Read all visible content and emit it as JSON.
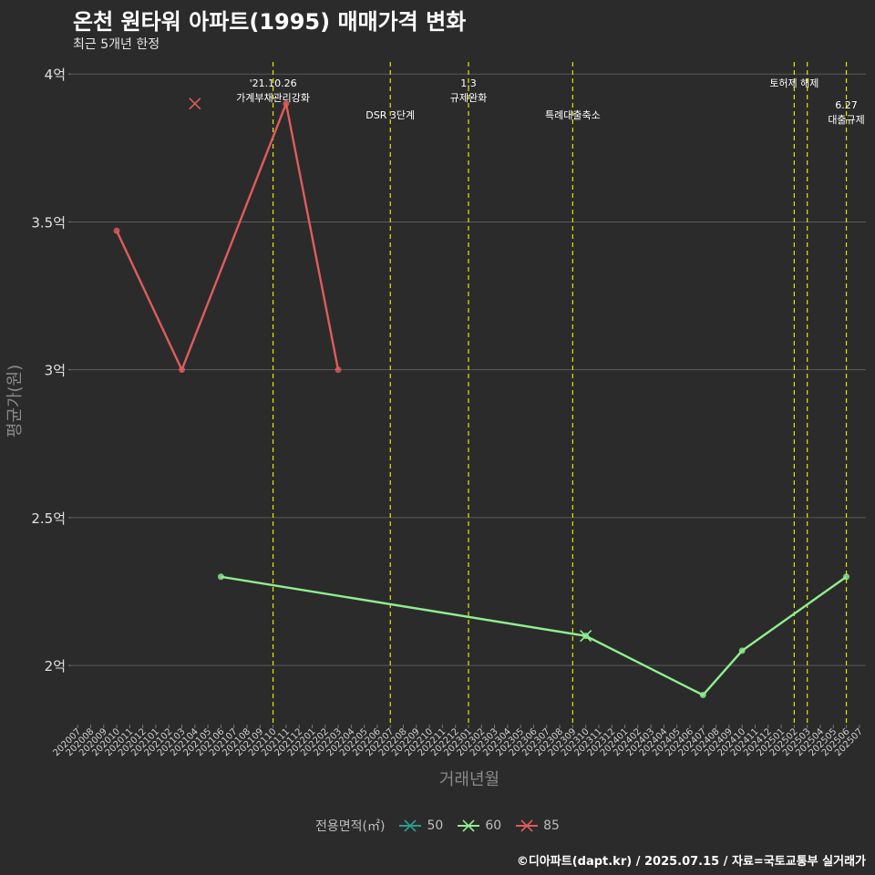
{
  "header": {
    "title": "온천 원타워 아파트(1995) 매매가격 변화",
    "subtitle": "최근 5개년 한정"
  },
  "footer": {
    "caption": "©디아파트(dapt.kr) / 2025.07.15 / 자료=국토교통부 실거래가"
  },
  "legend": {
    "title": "전용면적(㎡)",
    "items": [
      {
        "label": "50",
        "color": "#2a9d8f"
      },
      {
        "label": "60",
        "color": "#90ee90"
      },
      {
        "label": "85",
        "color": "#e05c5c"
      }
    ]
  },
  "chart_data": {
    "type": "line",
    "title": "온천 원타워 아파트(1995) 매매가격 변화",
    "xlabel": "거래년월",
    "ylabel": "평균가(원)",
    "ylim": [
      1.8,
      4.05
    ],
    "y_ticks": [
      2,
      2.5,
      3,
      3.5,
      4
    ],
    "y_tick_labels": [
      "2억",
      "2.5억",
      "3억",
      "3.5억",
      "4억"
    ],
    "categories": [
      "202007",
      "202008",
      "202009",
      "202010",
      "202011",
      "202012",
      "202101",
      "202102",
      "202103",
      "202104",
      "202105",
      "202106",
      "202107",
      "202108",
      "202109",
      "202110",
      "202111",
      "202112",
      "202201",
      "202202",
      "202203",
      "202204",
      "202205",
      "202206",
      "202207",
      "202208",
      "202209",
      "202210",
      "202211",
      "202212",
      "202301",
      "202302",
      "202303",
      "202304",
      "202305",
      "202306",
      "202307",
      "202308",
      "202309",
      "202310",
      "202311",
      "202312",
      "202401",
      "202402",
      "202403",
      "202404",
      "202405",
      "202406",
      "202407",
      "202408",
      "202409",
      "202410",
      "202411",
      "202412",
      "202501",
      "202502",
      "202503",
      "202504",
      "202505",
      "202506",
      "202507"
    ],
    "series": [
      {
        "name": "50",
        "color": "#2a9d8f",
        "points": []
      },
      {
        "name": "60",
        "color": "#90ee90",
        "points": [
          {
            "x": "202106",
            "y": 2.3
          },
          {
            "x": "202310",
            "y": 2.1
          },
          {
            "x": "202407",
            "y": 1.9
          },
          {
            "x": "202410",
            "y": 2.05
          },
          {
            "x": "202506",
            "y": 2.3
          }
        ],
        "cancelled": [
          {
            "x": "202310",
            "y": 2.1
          }
        ]
      },
      {
        "name": "85",
        "color": "#e05c5c",
        "points": [
          {
            "x": "202010",
            "y": 3.47
          },
          {
            "x": "202103",
            "y": 3.0
          },
          {
            "x": "202111",
            "y": 3.9
          },
          {
            "x": "202203",
            "y": 3.0
          }
        ],
        "cancelled": [
          {
            "x": "202104",
            "y": 3.9
          }
        ]
      }
    ],
    "events": [
      {
        "x": "202110",
        "lines": [
          "'21.10.26",
          "가계부채관리강화"
        ],
        "row": 0
      },
      {
        "x": "202207",
        "lines": [
          "DSR 3단계"
        ],
        "row": 1
      },
      {
        "x": "202301",
        "lines": [
          "1.3",
          "규제완화"
        ],
        "row": 0
      },
      {
        "x": "202309",
        "lines": [
          "특례대출축소"
        ],
        "row": 1
      },
      {
        "x": "202502",
        "lines": [
          "토허제 해제"
        ],
        "row": 0
      },
      {
        "x": "202503",
        "lines": [],
        "row": 0
      },
      {
        "x": "202506",
        "lines": [
          "6.27",
          "대출규제"
        ],
        "row": 1
      }
    ]
  }
}
